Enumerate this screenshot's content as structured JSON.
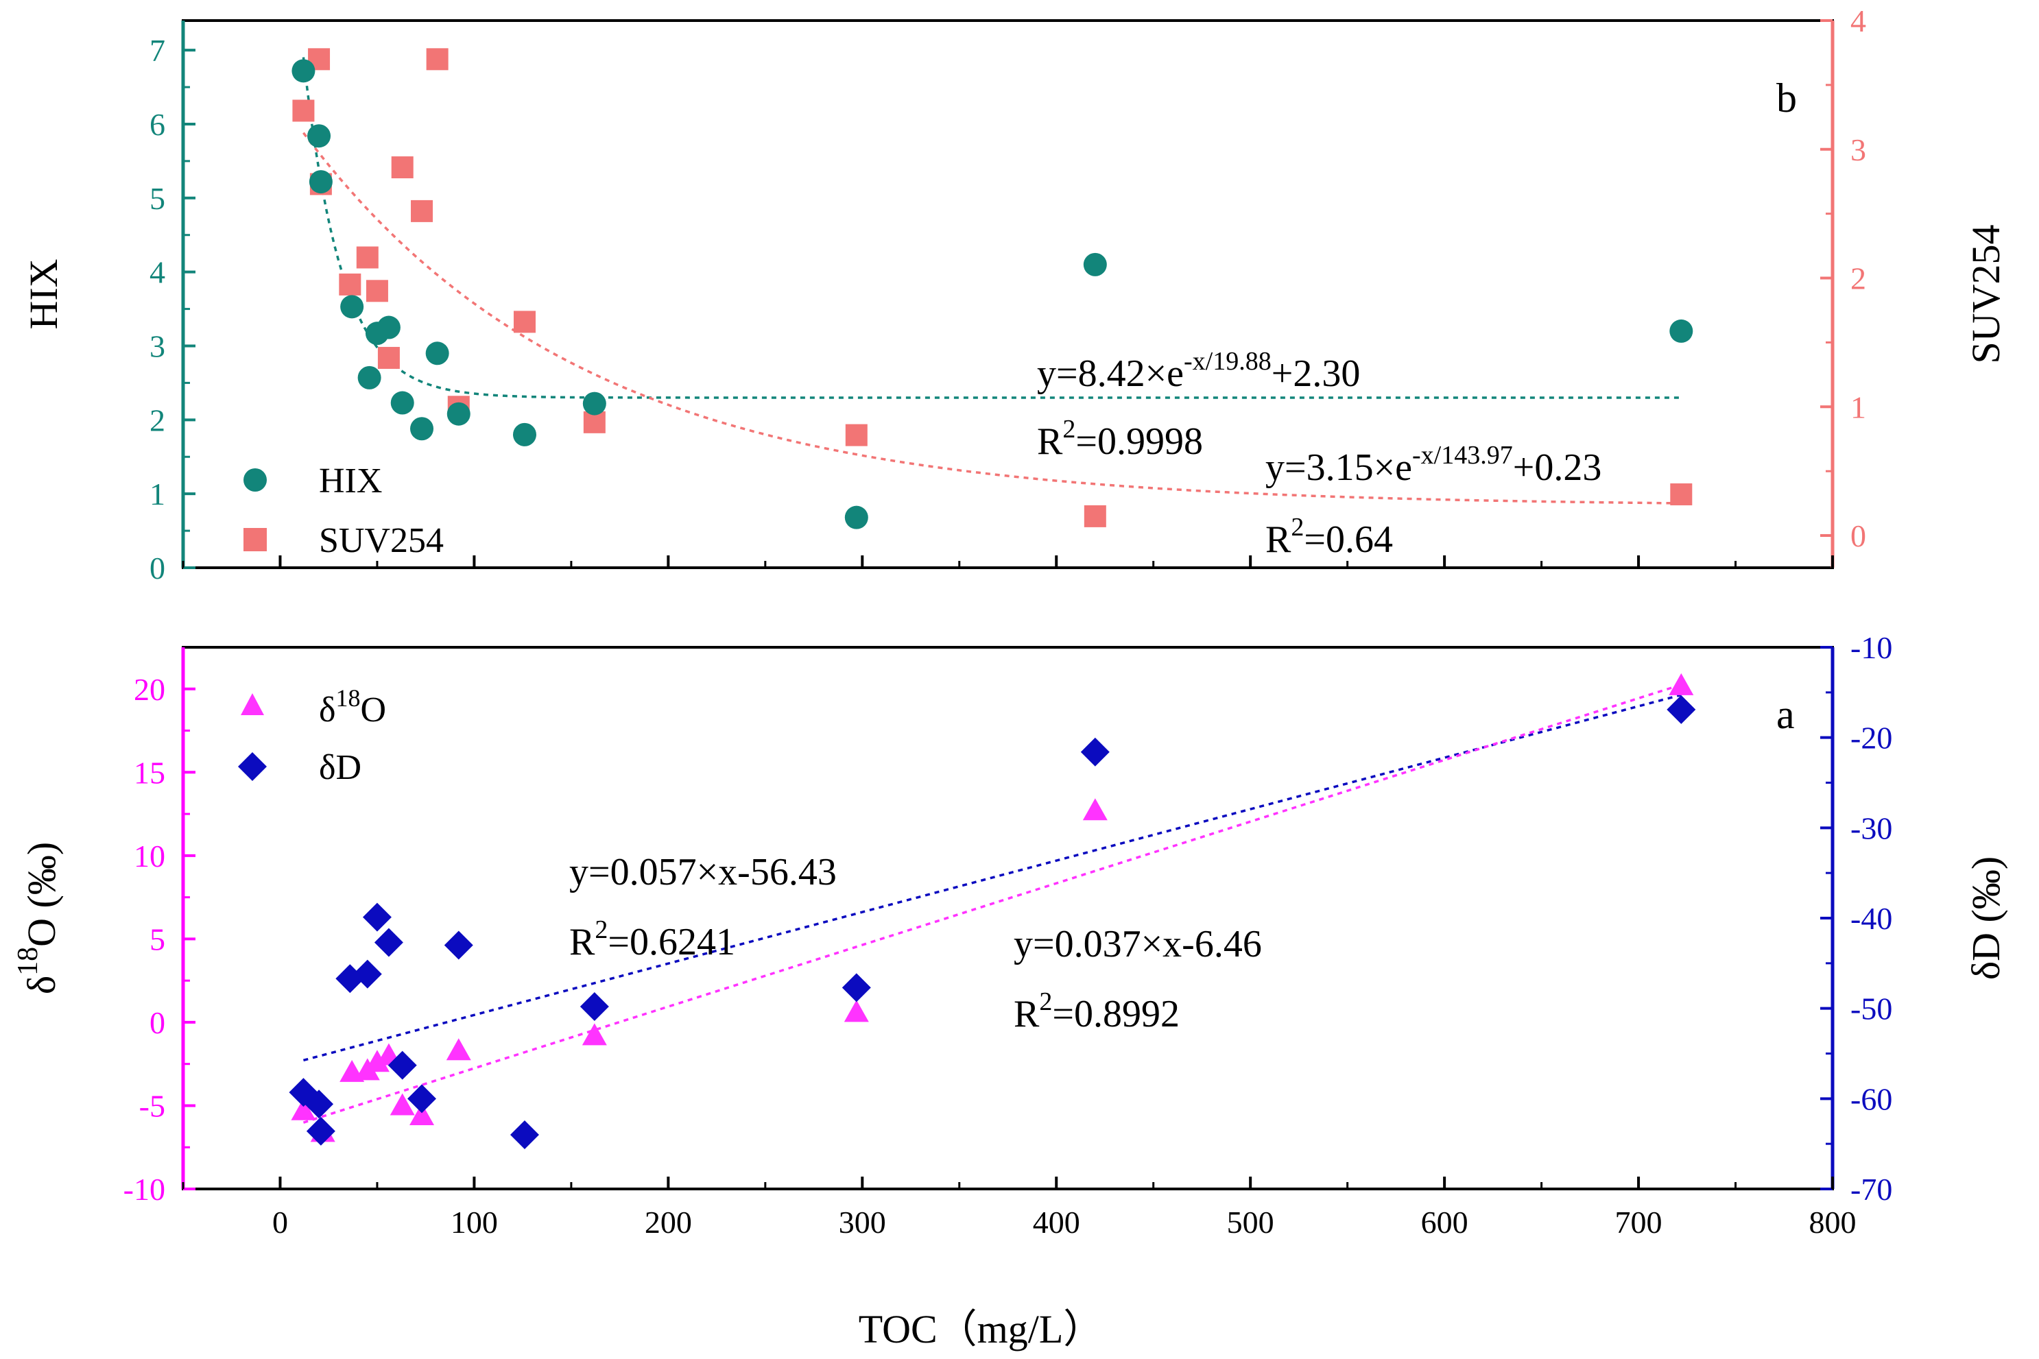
{
  "chart_data": [
    {
      "panel": "b",
      "type": "scatter",
      "panel_label": "b",
      "xlabel": "TOC（mg/L）",
      "xlim": [
        -50,
        800
      ],
      "x_ticks": [
        0,
        100,
        200,
        300,
        400,
        500,
        600,
        700,
        800
      ],
      "left_axis": {
        "label": "HIX",
        "ylim": [
          0,
          7.4
        ],
        "ticks": [
          0,
          1,
          2,
          3,
          4,
          5,
          6,
          7
        ],
        "color": "#12857a"
      },
      "right_axis": {
        "label": "SUV254",
        "ylim": [
          -0.25,
          4.0
        ],
        "ticks": [
          0,
          1,
          2,
          3,
          4
        ],
        "color": "#f27575"
      },
      "series": [
        {
          "name": "HIX",
          "axis": "left",
          "marker": "circle",
          "color": "#12857a",
          "x": [
            12,
            20,
            21,
            37,
            46,
            50,
            56,
            63,
            73,
            81,
            92,
            126,
            162,
            297,
            420,
            722
          ],
          "y": [
            6.72,
            5.84,
            5.22,
            3.53,
            2.57,
            3.17,
            3.25,
            2.23,
            1.88,
            2.9,
            2.08,
            1.8,
            2.22,
            0.68,
            4.1,
            3.2
          ]
        },
        {
          "name": "SUV254",
          "axis": "right",
          "marker": "square",
          "color": "#f27575",
          "x": [
            12,
            20,
            21,
            36,
            45,
            50,
            56,
            63,
            73,
            81,
            92,
            126,
            162,
            297,
            420,
            722
          ],
          "y": [
            3.3,
            3.7,
            2.73,
            1.95,
            2.16,
            1.9,
            1.38,
            2.86,
            2.52,
            3.7,
            1.0,
            1.66,
            0.88,
            0.78,
            0.15,
            0.32
          ]
        }
      ],
      "fits": [
        {
          "series": "HIX",
          "equation": "y=8.42×e-x/19.88+2.30",
          "eq_main": "y=8.42×e",
          "eq_sup": "-x/19.88",
          "eq_tail": "+2.30",
          "r2_label": "R",
          "r2_value": "=0.9998",
          "A": 8.42,
          "t": 19.88,
          "y0": 2.3,
          "x_range": [
            12,
            722
          ]
        },
        {
          "series": "SUV254",
          "equation": "y=3.15×e-x/143.97+0.23",
          "eq_main": "y=3.15×e",
          "eq_sup": "-x/143.97",
          "eq_tail": "+0.23",
          "r2_label": "R",
          "r2_value": "=0.64",
          "A": 3.15,
          "t": 143.97,
          "y0": 0.23,
          "x_range": [
            12,
            722
          ]
        }
      ],
      "legend": {
        "items": [
          "HIX",
          "SUV254"
        ],
        "placement": "bottom-left"
      }
    },
    {
      "panel": "a",
      "type": "scatter",
      "panel_label": "a",
      "xlabel": "TOC（mg/L）",
      "xlim": [
        -50,
        800
      ],
      "x_ticks": [
        0,
        100,
        200,
        300,
        400,
        500,
        600,
        700,
        800
      ],
      "left_axis": {
        "label": "δ18O (‰)",
        "label_main": "δ",
        "label_sup": "18",
        "label_tail": "O (‰)",
        "ylim": [
          -10,
          22.5
        ],
        "ticks": [
          -10,
          -5,
          0,
          5,
          10,
          15,
          20
        ],
        "color": "#ff00ff"
      },
      "right_axis": {
        "label": "δD (‰)",
        "ylim": [
          -70,
          -10
        ],
        "ticks": [
          -70,
          -60,
          -50,
          -40,
          -30,
          -20,
          -10
        ],
        "color": "#0b0bbf"
      },
      "series": [
        {
          "name": "δ18O",
          "name_main": "δ",
          "name_sup": "18",
          "name_tail": "O",
          "axis": "left",
          "marker": "triangle",
          "color": "#ff33ff",
          "x": [
            12,
            22,
            37,
            45,
            50,
            56,
            63,
            73,
            92,
            162,
            297,
            420,
            722
          ],
          "y": [
            -5.3,
            -6.6,
            -3.0,
            -2.9,
            -2.4,
            -2.0,
            -5.0,
            -5.6,
            -1.7,
            -0.8,
            0.6,
            12.7,
            20.2
          ]
        },
        {
          "name": "δD",
          "axis": "right",
          "marker": "diamond",
          "color": "#0b0bbf",
          "x": [
            12,
            20,
            21,
            36,
            45,
            50,
            56,
            63,
            73,
            92,
            126,
            162,
            297,
            420,
            722
          ],
          "y": [
            -59.3,
            -60.6,
            -63.6,
            -46.7,
            -46.2,
            -39.9,
            -42.7,
            -56.3,
            -60.0,
            -43.0,
            -64.0,
            -49.8,
            -47.7,
            -21.6,
            -16.9
          ]
        }
      ],
      "fits": [
        {
          "series": "δD",
          "equation": "y=0.057×x-56.43",
          "eq_main": "y=0.057×x-56.43",
          "r2_label": "R",
          "r2_value": "=0.6241",
          "slope": 0.057,
          "intercept": -56.43,
          "x_range": [
            12,
            722
          ]
        },
        {
          "series": "δ18O",
          "equation": "y=0.037×x-6.46",
          "eq_main": "y=0.037×x-6.46",
          "r2_label": "R",
          "r2_value": "=0.8992",
          "slope": 0.037,
          "intercept": -6.46,
          "x_range": [
            12,
            722
          ]
        }
      ],
      "legend": {
        "items": [
          "δ18O",
          "δD"
        ],
        "placement": "top-left"
      }
    }
  ]
}
